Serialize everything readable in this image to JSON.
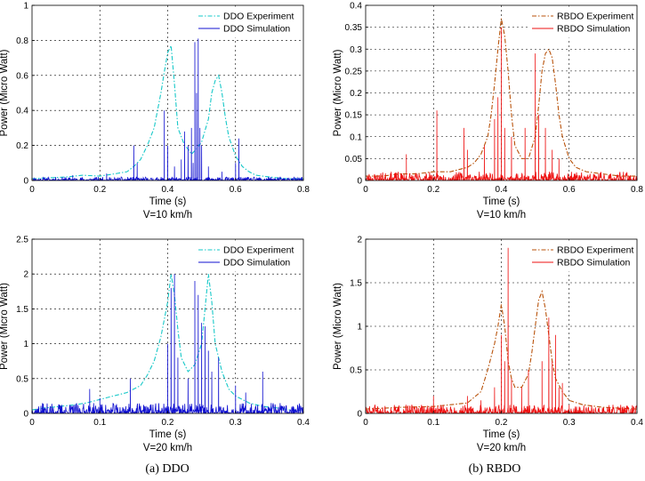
{
  "captions": {
    "a": "(a) DDO",
    "b": "(b) RBDO"
  },
  "colors": {
    "ddo_exp": "#16c8c8",
    "ddo_sim": "#1010d0",
    "rbdo_exp": "#b8520a",
    "rbdo_sim": "#ee1111"
  },
  "chart_data": [
    {
      "type": "line",
      "panel": "top-left",
      "xlabel": "Time (s)",
      "subtitle": "V=10 km/h",
      "ylabel": "Power (Micro Watt)",
      "xlim": [
        0,
        0.8
      ],
      "ylim": [
        0,
        1
      ],
      "xticks": [
        0,
        0.2,
        0.4,
        0.6,
        0.8
      ],
      "xticklabels": [
        "0",
        "0.2",
        "0.4",
        "0.6",
        "0.8"
      ],
      "yticks": [
        0,
        0.2,
        0.4,
        0.6,
        0.8,
        1
      ],
      "yticklabels": [
        "0",
        "0.2",
        "0.4",
        "0.6",
        "0.8",
        "1"
      ],
      "grid": true,
      "legend": "top-right",
      "series": [
        {
          "name": "DDO Experiment",
          "style": "dashdot",
          "color": "ddo_exp",
          "x": [
            0,
            0.05,
            0.1,
            0.15,
            0.2,
            0.25,
            0.28,
            0.3,
            0.32,
            0.34,
            0.36,
            0.37,
            0.38,
            0.39,
            0.4,
            0.41,
            0.42,
            0.43,
            0.44,
            0.45,
            0.46,
            0.47,
            0.48,
            0.5,
            0.52,
            0.53,
            0.54,
            0.55,
            0.56,
            0.57,
            0.58,
            0.6,
            0.62,
            0.64,
            0.66,
            0.7,
            0.75,
            0.8
          ],
          "y": [
            0.01,
            0.015,
            0.02,
            0.03,
            0.025,
            0.04,
            0.05,
            0.08,
            0.12,
            0.2,
            0.3,
            0.4,
            0.5,
            0.62,
            0.73,
            0.77,
            0.55,
            0.3,
            0.25,
            0.2,
            0.18,
            0.15,
            0.17,
            0.22,
            0.35,
            0.5,
            0.57,
            0.6,
            0.5,
            0.36,
            0.25,
            0.14,
            0.08,
            0.05,
            0.03,
            0.02,
            0.01,
            0.01
          ]
        },
        {
          "name": "DDO Simulation",
          "style": "solid",
          "color": "ddo_sim",
          "base": [
            0,
            0.02
          ],
          "seed": 11,
          "range": [
            0,
            0.8
          ],
          "spikes": [
            [
              0.12,
              0.03
            ],
            [
              0.22,
              0.04
            ],
            [
              0.3,
              0.2
            ],
            [
              0.31,
              0.1
            ],
            [
              0.39,
              0.4
            ],
            [
              0.4,
              0.2
            ],
            [
              0.42,
              0.08
            ],
            [
              0.44,
              0.12
            ],
            [
              0.45,
              0.28
            ],
            [
              0.46,
              0.2
            ],
            [
              0.47,
              0.3
            ],
            [
              0.475,
              0.1
            ],
            [
              0.48,
              0.79
            ],
            [
              0.485,
              0.5
            ],
            [
              0.49,
              0.81
            ],
            [
              0.495,
              0.3
            ],
            [
              0.5,
              0.2
            ],
            [
              0.52,
              0.08
            ],
            [
              0.56,
              0.05
            ],
            [
              0.6,
              0.1
            ],
            [
              0.61,
              0.24
            ]
          ]
        }
      ]
    },
    {
      "type": "line",
      "panel": "top-right",
      "xlabel": "Time (s)",
      "subtitle": "V=10 km/h",
      "ylabel": "Power (Micro Watt)",
      "xlim": [
        0,
        0.8
      ],
      "ylim": [
        0,
        0.4
      ],
      "xticks": [
        0,
        0.2,
        0.4,
        0.6,
        0.8
      ],
      "xticklabels": [
        "0",
        "0.2",
        "0.4",
        "0.6",
        "0.8"
      ],
      "yticks": [
        0,
        0.05,
        0.1,
        0.15,
        0.2,
        0.25,
        0.3,
        0.35,
        0.4
      ],
      "yticklabels": [
        "0",
        "0.05",
        "0.1",
        "0.15",
        "0.2",
        "0.25",
        "0.3",
        "0.35",
        "0.4"
      ],
      "grid": true,
      "legend": "top-right",
      "series": [
        {
          "name": "RBDO Experiment",
          "style": "dashdot",
          "color": "rbdo_exp",
          "x": [
            0,
            0.05,
            0.1,
            0.15,
            0.2,
            0.25,
            0.3,
            0.32,
            0.34,
            0.36,
            0.37,
            0.38,
            0.39,
            0.4,
            0.41,
            0.42,
            0.43,
            0.44,
            0.46,
            0.48,
            0.5,
            0.51,
            0.52,
            0.53,
            0.54,
            0.55,
            0.56,
            0.57,
            0.58,
            0.6,
            0.62,
            0.65,
            0.7,
            0.75,
            0.8
          ],
          "y": [
            0.01,
            0.01,
            0.015,
            0.015,
            0.02,
            0.02,
            0.03,
            0.04,
            0.06,
            0.1,
            0.15,
            0.22,
            0.3,
            0.37,
            0.33,
            0.25,
            0.15,
            0.08,
            0.05,
            0.05,
            0.1,
            0.17,
            0.25,
            0.29,
            0.3,
            0.28,
            0.22,
            0.15,
            0.1,
            0.05,
            0.03,
            0.02,
            0.015,
            0.01,
            0.01
          ]
        },
        {
          "name": "RBDO Simulation",
          "style": "solid",
          "color": "rbdo_sim",
          "base": [
            0,
            0.02
          ],
          "seed": 23,
          "range": [
            0,
            0.8
          ],
          "spikes": [
            [
              0.12,
              0.06
            ],
            [
              0.21,
              0.16
            ],
            [
              0.29,
              0.12
            ],
            [
              0.3,
              0.07
            ],
            [
              0.35,
              0.08
            ],
            [
              0.38,
              0.14
            ],
            [
              0.39,
              0.19
            ],
            [
              0.4,
              0.35
            ],
            [
              0.41,
              0.12
            ],
            [
              0.43,
              0.1
            ],
            [
              0.47,
              0.12
            ],
            [
              0.5,
              0.29
            ],
            [
              0.51,
              0.15
            ],
            [
              0.53,
              0.12
            ],
            [
              0.55,
              0.07
            ],
            [
              0.57,
              0.05
            ]
          ]
        }
      ]
    },
    {
      "type": "line",
      "panel": "bottom-left",
      "xlabel": "Time (s)",
      "subtitle": "V=20 km/h",
      "ylabel": "Power (Micro Watt)",
      "xlim": [
        0,
        0.4
      ],
      "ylim": [
        0,
        2.5
      ],
      "xticks": [
        0,
        0.1,
        0.2,
        0.3,
        0.4
      ],
      "xticklabels": [
        "0",
        "0.1",
        "0.2",
        "0.3",
        "0.4"
      ],
      "yticks": [
        0,
        0.5,
        1,
        1.5,
        2,
        2.5
      ],
      "yticklabels": [
        "0",
        "0.5",
        "1",
        "1.5",
        "2",
        "2.5"
      ],
      "grid": true,
      "legend": "top-right",
      "series": [
        {
          "name": "DDO Experiment",
          "style": "dashdot",
          "color": "ddo_exp",
          "x": [
            0,
            0.02,
            0.04,
            0.06,
            0.08,
            0.1,
            0.12,
            0.14,
            0.16,
            0.17,
            0.18,
            0.19,
            0.2,
            0.205,
            0.21,
            0.215,
            0.22,
            0.23,
            0.24,
            0.25,
            0.255,
            0.26,
            0.265,
            0.27,
            0.28,
            0.29,
            0.3,
            0.32,
            0.34,
            0.36,
            0.38,
            0.4
          ],
          "y": [
            0.05,
            0.08,
            0.1,
            0.12,
            0.15,
            0.2,
            0.25,
            0.3,
            0.4,
            0.55,
            0.75,
            1.1,
            1.6,
            2.0,
            1.7,
            1.2,
            0.8,
            0.6,
            0.7,
            1.0,
            1.5,
            2.0,
            1.6,
            1.0,
            0.6,
            0.35,
            0.25,
            0.15,
            0.1,
            0.08,
            0.05,
            0.04
          ]
        },
        {
          "name": "DDO Simulation",
          "style": "solid",
          "color": "ddo_sim",
          "base": [
            0,
            0.15
          ],
          "seed": 37,
          "range": [
            0,
            0.4
          ],
          "spikes": [
            [
              0.085,
              0.35
            ],
            [
              0.1,
              0.22
            ],
            [
              0.145,
              0.5
            ],
            [
              0.2,
              1.0
            ],
            [
              0.205,
              1.8
            ],
            [
              0.21,
              2.0
            ],
            [
              0.215,
              0.8
            ],
            [
              0.23,
              0.5
            ],
            [
              0.24,
              1.9
            ],
            [
              0.245,
              1.7
            ],
            [
              0.25,
              1.3
            ],
            [
              0.255,
              1.25
            ],
            [
              0.26,
              0.9
            ],
            [
              0.265,
              0.6
            ],
            [
              0.275,
              0.8
            ],
            [
              0.3,
              0.4
            ],
            [
              0.315,
              0.3
            ],
            [
              0.34,
              0.6
            ]
          ]
        }
      ]
    },
    {
      "type": "line",
      "panel": "bottom-right",
      "xlabel": "Time (s)",
      "subtitle": "V=20 km/h",
      "ylabel": "Power (Micro Watt)",
      "xlim": [
        0,
        0.4
      ],
      "ylim": [
        0,
        2
      ],
      "xticks": [
        0,
        0.1,
        0.2,
        0.3,
        0.4
      ],
      "xticklabels": [
        "0",
        "0.1",
        "0.2",
        "0.3",
        "0.4"
      ],
      "yticks": [
        0,
        0.5,
        1,
        1.5,
        2
      ],
      "yticklabels": [
        "0",
        "0.5",
        "1",
        "1.5",
        "2"
      ],
      "grid": true,
      "legend": "top-right",
      "series": [
        {
          "name": "RBDO Experiment",
          "style": "dashdot",
          "color": "rbdo_exp",
          "x": [
            0,
            0.05,
            0.1,
            0.15,
            0.17,
            0.18,
            0.19,
            0.195,
            0.2,
            0.205,
            0.21,
            0.215,
            0.22,
            0.23,
            0.24,
            0.245,
            0.25,
            0.255,
            0.26,
            0.265,
            0.27,
            0.275,
            0.28,
            0.29,
            0.3,
            0.32,
            0.35,
            0.4
          ],
          "y": [
            0.05,
            0.07,
            0.08,
            0.12,
            0.25,
            0.5,
            0.8,
            1.0,
            1.25,
            1.0,
            0.6,
            0.4,
            0.3,
            0.3,
            0.45,
            0.7,
            1.0,
            1.3,
            1.4,
            1.2,
            0.9,
            0.6,
            0.4,
            0.25,
            0.15,
            0.1,
            0.07,
            0.05
          ]
        },
        {
          "name": "RBDO Simulation",
          "style": "solid",
          "color": "rbdo_sim",
          "base": [
            0,
            0.1
          ],
          "seed": 51,
          "range": [
            0,
            0.4
          ],
          "spikes": [
            [
              0.1,
              0.2
            ],
            [
              0.15,
              0.2
            ],
            [
              0.17,
              0.15
            ],
            [
              0.19,
              0.3
            ],
            [
              0.2,
              0.9
            ],
            [
              0.205,
              0.6
            ],
            [
              0.21,
              1.9
            ],
            [
              0.215,
              0.4
            ],
            [
              0.23,
              0.3
            ],
            [
              0.24,
              0.5
            ],
            [
              0.26,
              0.6
            ],
            [
              0.27,
              1.1
            ],
            [
              0.275,
              0.6
            ],
            [
              0.28,
              0.9
            ],
            [
              0.285,
              0.3
            ],
            [
              0.29,
              0.35
            ],
            [
              0.3,
              0.1
            ]
          ]
        }
      ]
    }
  ]
}
